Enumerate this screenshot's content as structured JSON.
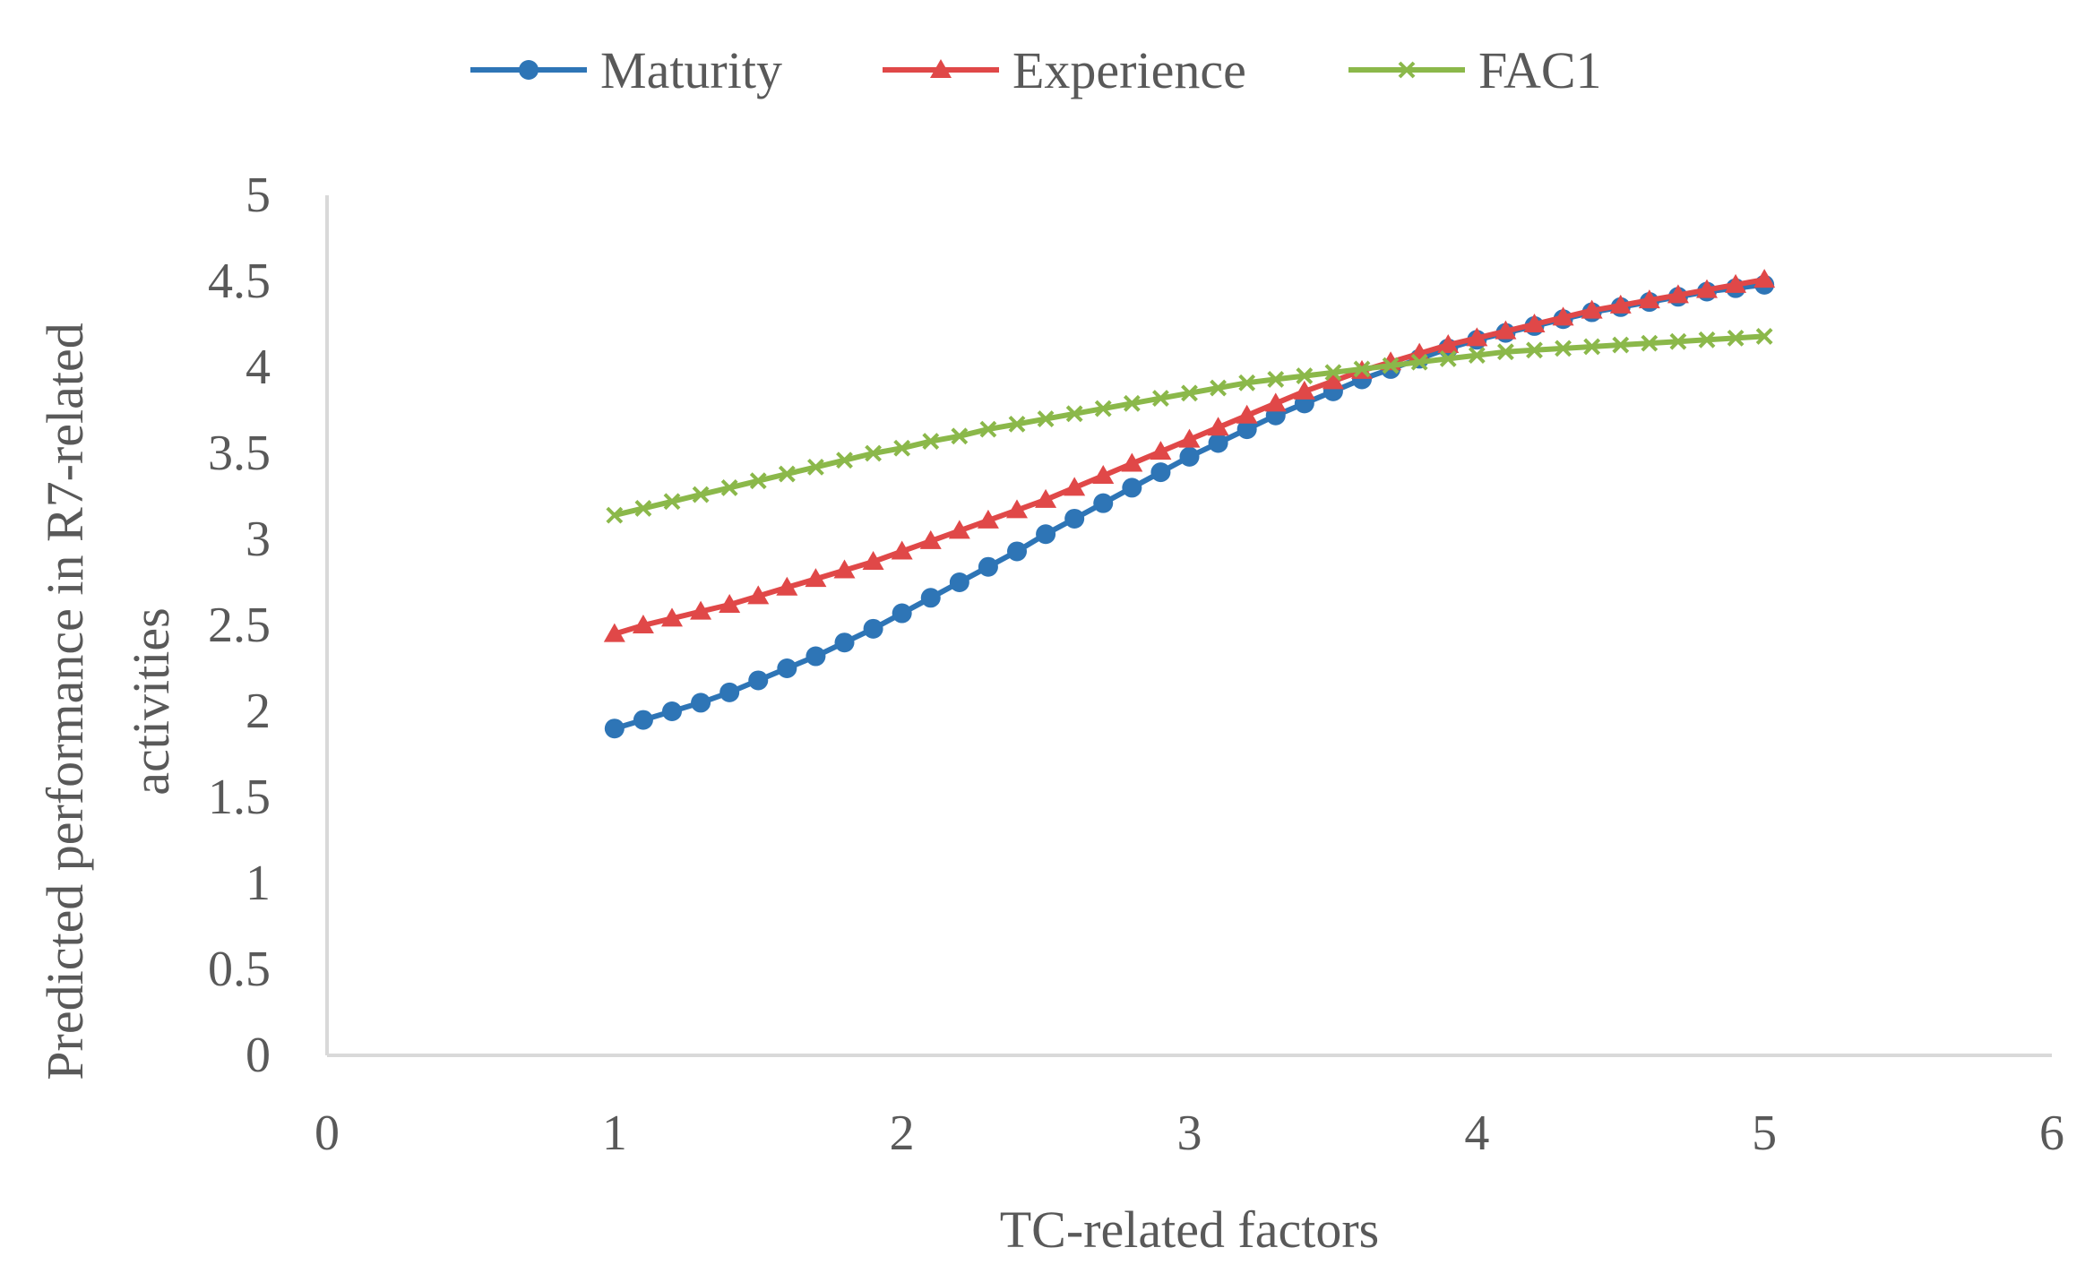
{
  "chart_data": {
    "type": "line",
    "title": "",
    "xlabel": "TC-related factors",
    "ylabel_line1": "Predicted performance in R7-related",
    "ylabel_line2": "activities",
    "xlim": [
      0,
      6
    ],
    "ylim": [
      0,
      5
    ],
    "x_ticks": [
      {
        "value": 0,
        "label": "0"
      },
      {
        "value": 1,
        "label": "1"
      },
      {
        "value": 2,
        "label": "2"
      },
      {
        "value": 3,
        "label": "3"
      },
      {
        "value": 4,
        "label": "4"
      },
      {
        "value": 5,
        "label": "5"
      },
      {
        "value": 6,
        "label": "6"
      }
    ],
    "y_ticks": [
      {
        "value": 0,
        "label": "0"
      },
      {
        "value": 0.5,
        "label": "0.5"
      },
      {
        "value": 1,
        "label": "1"
      },
      {
        "value": 1.5,
        "label": "1.5"
      },
      {
        "value": 2,
        "label": "2"
      },
      {
        "value": 2.5,
        "label": "2.5"
      },
      {
        "value": 3,
        "label": "3"
      },
      {
        "value": 3.5,
        "label": "3.5"
      },
      {
        "value": 4,
        "label": "4"
      },
      {
        "value": 4.5,
        "label": "4.5"
      },
      {
        "value": 5,
        "label": "5"
      }
    ],
    "grid": false,
    "legend_position": "top",
    "x": [
      1.0,
      1.1,
      1.2,
      1.3,
      1.4,
      1.5,
      1.6,
      1.7,
      1.8,
      1.9,
      2.0,
      2.1,
      2.2,
      2.3,
      2.4,
      2.5,
      2.6,
      2.7,
      2.8,
      2.9,
      3.0,
      3.1,
      3.2,
      3.3,
      3.4,
      3.5,
      3.6,
      3.7,
      3.8,
      3.9,
      4.0,
      4.1,
      4.2,
      4.3,
      4.4,
      4.5,
      4.6,
      4.7,
      4.8,
      4.9,
      5.0
    ],
    "series": [
      {
        "name": "Maturity",
        "color": "#2E75B6",
        "marker": "circle",
        "values": [
          1.9,
          1.95,
          2.0,
          2.05,
          2.11,
          2.18,
          2.25,
          2.32,
          2.4,
          2.48,
          2.57,
          2.66,
          2.75,
          2.84,
          2.93,
          3.03,
          3.12,
          3.21,
          3.3,
          3.39,
          3.48,
          3.56,
          3.64,
          3.72,
          3.79,
          3.86,
          3.93,
          3.99,
          4.05,
          4.11,
          4.16,
          4.2,
          4.24,
          4.28,
          4.32,
          4.35,
          4.38,
          4.41,
          4.44,
          4.46,
          4.48
        ]
      },
      {
        "name": "Experience",
        "color": "#E04848",
        "marker": "triangle",
        "values": [
          2.45,
          2.5,
          2.54,
          2.58,
          2.62,
          2.67,
          2.72,
          2.77,
          2.82,
          2.87,
          2.93,
          2.99,
          3.05,
          3.11,
          3.17,
          3.23,
          3.3,
          3.37,
          3.44,
          3.51,
          3.58,
          3.65,
          3.72,
          3.79,
          3.86,
          3.92,
          3.98,
          4.03,
          4.08,
          4.13,
          4.17,
          4.21,
          4.25,
          4.29,
          4.33,
          4.36,
          4.39,
          4.42,
          4.45,
          4.48,
          4.51
        ]
      },
      {
        "name": "FAC1",
        "color": "#8BB84A",
        "marker": "x",
        "values": [
          3.14,
          3.18,
          3.22,
          3.26,
          3.3,
          3.34,
          3.38,
          3.42,
          3.46,
          3.5,
          3.53,
          3.57,
          3.6,
          3.64,
          3.67,
          3.7,
          3.73,
          3.76,
          3.79,
          3.82,
          3.85,
          3.88,
          3.91,
          3.93,
          3.95,
          3.97,
          3.99,
          4.01,
          4.03,
          4.05,
          4.07,
          4.09,
          4.1,
          4.11,
          4.12,
          4.13,
          4.14,
          4.15,
          4.16,
          4.17,
          4.18
        ]
      }
    ],
    "axis_color": "#D9D9D9"
  }
}
